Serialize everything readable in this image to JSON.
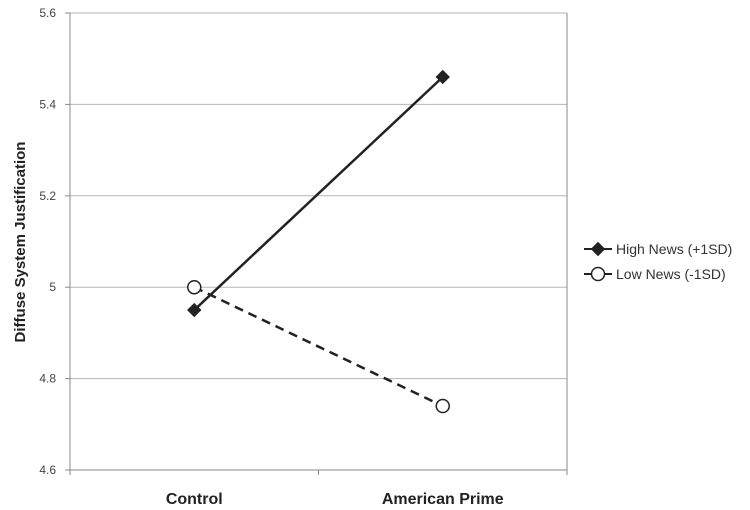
{
  "chart_data": {
    "type": "line",
    "categories": [
      "Control",
      "American Prime"
    ],
    "ylabel": "Diffuse System Justification",
    "xlabel": "",
    "ylim": [
      4.6,
      5.6
    ],
    "yticks": [
      "4.6",
      "4.8",
      "5",
      "5.2",
      "5.4",
      "5.6"
    ],
    "grid": true,
    "legend_position": "right",
    "series": [
      {
        "name": "High News (+1SD)",
        "values": [
          4.95,
          5.46
        ],
        "marker": "filled-diamond",
        "line_style": "solid",
        "color": "#222222"
      },
      {
        "name": "Low News (-1SD)",
        "values": [
          5.0,
          4.74
        ],
        "marker": "open-circle",
        "line_style": "dashed",
        "color": "#222222"
      }
    ]
  }
}
